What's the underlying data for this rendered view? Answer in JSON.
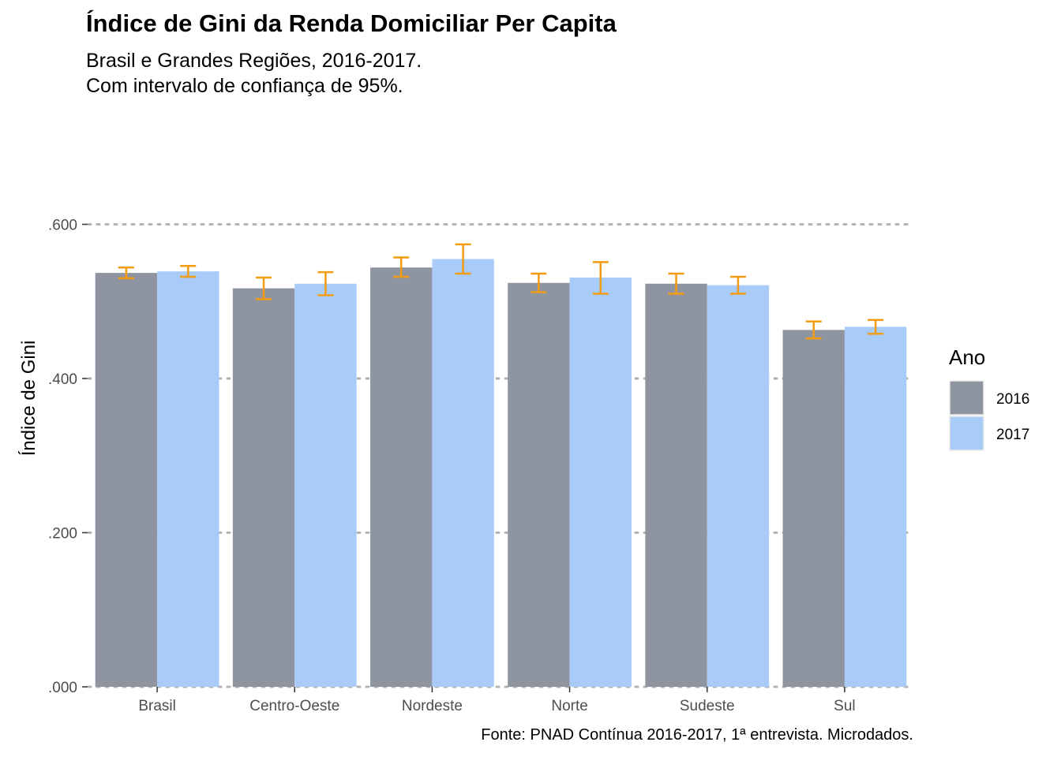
{
  "chart_data": {
    "type": "bar",
    "title": "Índice de Gini da Renda Domiciliar Per Capita",
    "subtitle_lines": [
      "Brasil e Grandes Regiões, 2016-2017.",
      "Com intervalo de confiança de 95%."
    ],
    "caption": "Fonte: PNAD Contínua 2016-2017, 1ª entrevista. Microdados.",
    "xlabel": "",
    "ylabel": "Índice de Gini",
    "ylim": [
      0,
      0.62
    ],
    "yticks": [
      {
        "value": 0.0,
        "label": ".000"
      },
      {
        "value": 0.2,
        "label": ".200"
      },
      {
        "value": 0.4,
        "label": ".400"
      },
      {
        "value": 0.6,
        "label": ".600"
      }
    ],
    "grid": "horizontal-dotted",
    "categories": [
      "Brasil",
      "Centro-Oeste",
      "Nordeste",
      "Norte",
      "Sudeste",
      "Sul"
    ],
    "series": [
      {
        "name": "2016",
        "color": "#8f95a0",
        "values": [
          0.537,
          0.517,
          0.544,
          0.524,
          0.523,
          0.463
        ],
        "ci_low": [
          0.53,
          0.503,
          0.532,
          0.512,
          0.51,
          0.452
        ],
        "ci_high": [
          0.544,
          0.531,
          0.557,
          0.536,
          0.536,
          0.474
        ]
      },
      {
        "name": "2017",
        "color": "#a9cbf7",
        "values": [
          0.539,
          0.523,
          0.555,
          0.531,
          0.521,
          0.467
        ],
        "ci_low": [
          0.532,
          0.508,
          0.536,
          0.51,
          0.51,
          0.458
        ],
        "ci_high": [
          0.546,
          0.538,
          0.574,
          0.551,
          0.532,
          0.476
        ]
      }
    ],
    "errorbar_color": "#f39c12",
    "legend": {
      "title": "Ano",
      "position": "right"
    }
  }
}
